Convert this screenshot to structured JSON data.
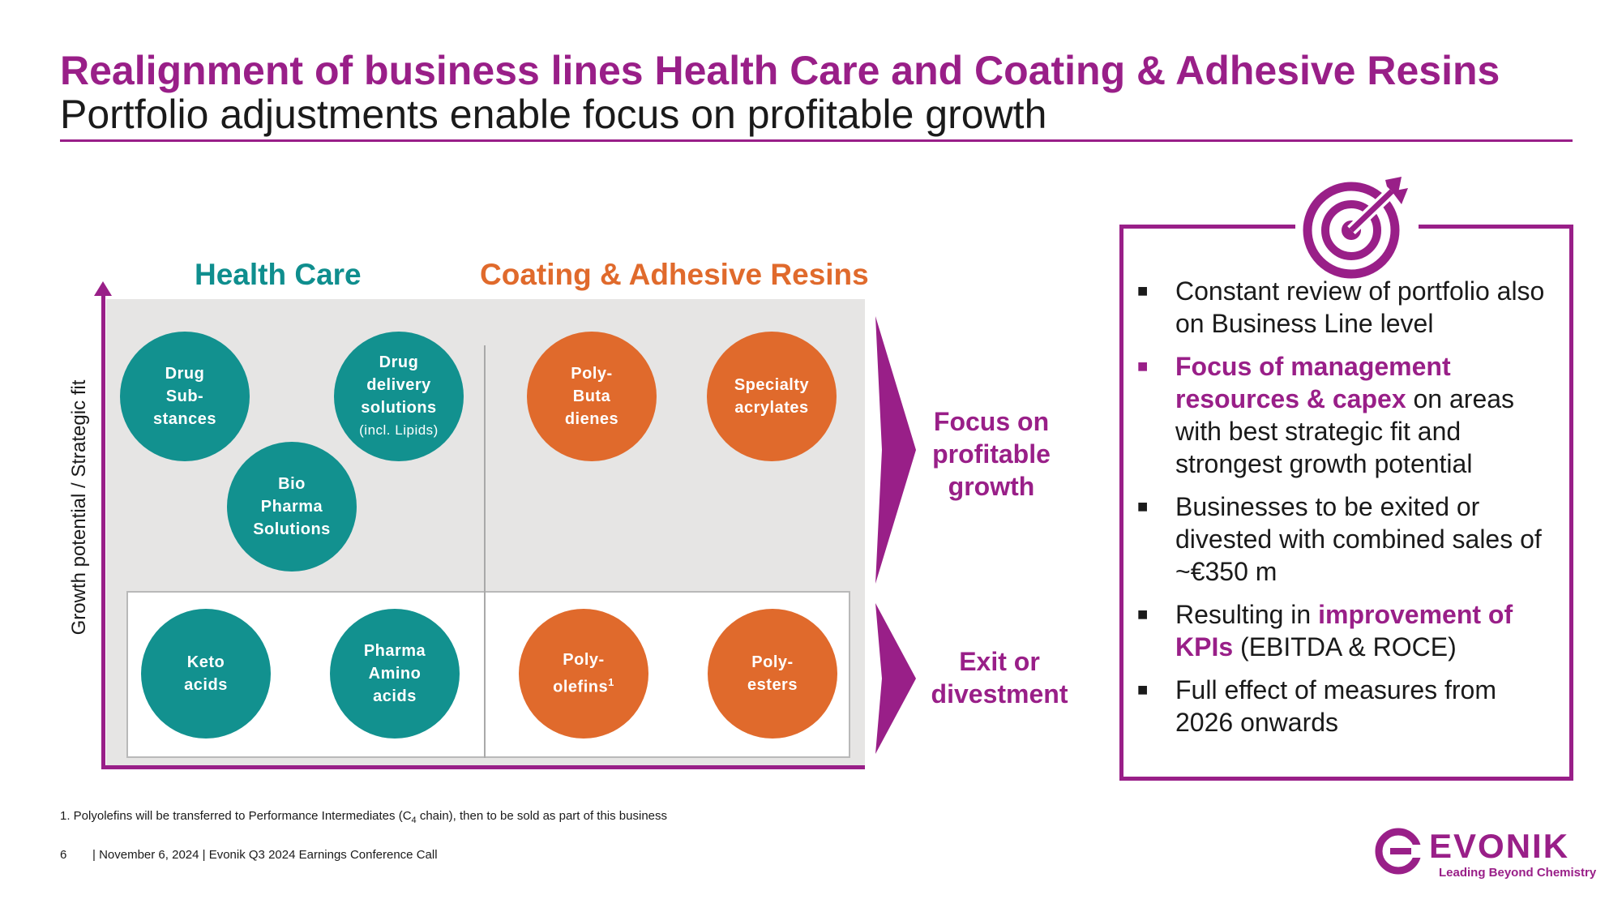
{
  "header": {
    "title": "Realignment of business lines Health Care and Coating & Adhesive Resins",
    "subtitle": "Portfolio adjustments enable focus on profitable growth"
  },
  "matrix": {
    "y_axis_label": "Growth potential / Strategic fit",
    "columns": [
      {
        "label": "Health Care",
        "color": "#12918f"
      },
      {
        "label": "Coating & Adhesive Resins",
        "color": "#e06a2c"
      }
    ],
    "focus_label": [
      "Focus on",
      "profitable",
      "growth"
    ],
    "exit_label": [
      "Exit or",
      "divestment"
    ],
    "focus_circles": [
      {
        "group": "Health Care",
        "lines": [
          "Drug",
          "Sub-",
          "stances"
        ]
      },
      {
        "group": "Health Care",
        "lines": [
          "Drug",
          "delivery",
          "solutions",
          "(incl. Lipids)"
        ]
      },
      {
        "group": "Health Care",
        "lines": [
          "Bio",
          "Pharma",
          "Solutions"
        ]
      },
      {
        "group": "Coating & Adhesive Resins",
        "lines": [
          "Poly-",
          "Buta",
          "dienes"
        ]
      },
      {
        "group": "Coating & Adhesive Resins",
        "lines": [
          "Specialty",
          "acrylates"
        ]
      }
    ],
    "exit_circles": [
      {
        "group": "Health Care",
        "lines": [
          "Keto",
          "acids"
        ]
      },
      {
        "group": "Health Care",
        "lines": [
          "Pharma",
          "Amino",
          "acids"
        ]
      },
      {
        "group": "Coating & Adhesive Resins",
        "lines": [
          "Poly-",
          "olefins"
        ],
        "footnote_mark": "1"
      },
      {
        "group": "Coating & Adhesive Resins",
        "lines": [
          "Poly-",
          "esters"
        ]
      }
    ]
  },
  "panel": {
    "icon": "target-icon",
    "bullets": [
      {
        "text": "Constant review of portfolio also on Business Line level"
      },
      {
        "strong": "Focus of management resources & capex",
        "text": " on areas with best strategic fit and strongest growth potential"
      },
      {
        "text": "Businesses to be exited or divested with combined sales of ~€350 m"
      },
      {
        "text_before": "Resulting in ",
        "strong": "improvement of KPIs",
        "text": " (EBITDA & ROCE)"
      },
      {
        "text": "Full effect of measures from 2026 onwards"
      }
    ]
  },
  "footnote": {
    "before": "1. Polyolefins will be transferred to Performance Intermediates (C",
    "sub": "4",
    "after": " chain), then to be sold as part of this business"
  },
  "footer": {
    "page": "6",
    "text": "|  November 6, 2024  |  Evonik Q3 2024 Earnings Conference Call"
  },
  "logo": {
    "word": "EVONIK",
    "tagline": "Leading Beyond Chemistry"
  },
  "colors": {
    "accent": "#991f88",
    "teal": "#12918f",
    "orange": "#e06a2c",
    "matrix_background": "#e6e5e4"
  }
}
